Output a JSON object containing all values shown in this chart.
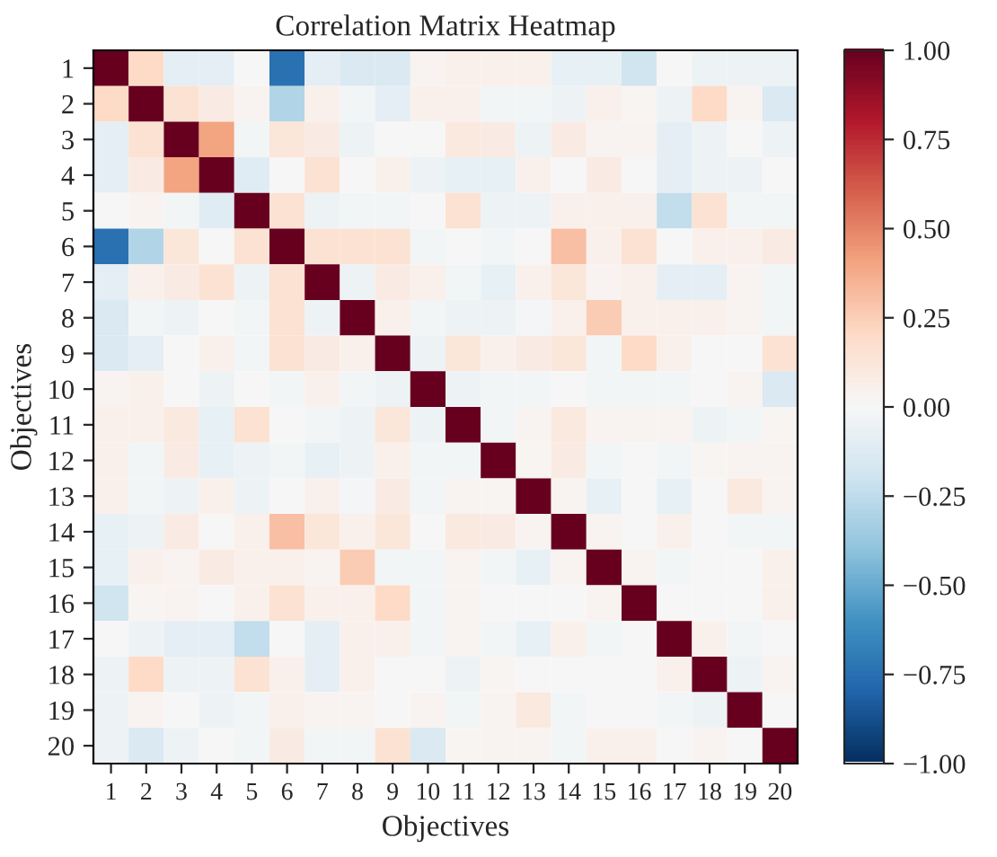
{
  "chart_data": {
    "type": "heatmap",
    "title": "Correlation Matrix Heatmap",
    "xlabel": "Objectives",
    "ylabel": "Objectives",
    "categories": [
      "1",
      "2",
      "3",
      "4",
      "5",
      "6",
      "7",
      "8",
      "9",
      "10",
      "11",
      "12",
      "13",
      "14",
      "15",
      "16",
      "17",
      "18",
      "19",
      "20"
    ],
    "y_categories": [
      "1",
      "2",
      "3",
      "4",
      "5",
      "6",
      "7",
      "8",
      "9",
      "10",
      "11",
      "12",
      "13",
      "14",
      "15",
      "16",
      "17",
      "18",
      "19",
      "20"
    ],
    "cells": [
      [
        1,
        0.2,
        -0.1,
        -0.1,
        0,
        -0.75,
        -0.1,
        -0.15,
        -0.15,
        0.03,
        0.05,
        0.05,
        0.05,
        -0.08,
        -0.08,
        -0.2,
        0,
        -0.05,
        -0.05,
        -0.05
      ],
      [
        0.2,
        1,
        0.15,
        0.08,
        0.03,
        -0.3,
        0.05,
        -0.03,
        -0.1,
        0.05,
        0.05,
        -0.03,
        -0.03,
        -0.05,
        0.05,
        0.02,
        -0.05,
        0.2,
        0.03,
        -0.15
      ],
      [
        -0.1,
        0.15,
        1,
        0.4,
        -0.03,
        0.12,
        0.08,
        -0.05,
        0,
        0,
        0.1,
        0.08,
        -0.05,
        0.08,
        0.03,
        0.03,
        -0.1,
        -0.05,
        0,
        -0.05
      ],
      [
        -0.1,
        0.08,
        0.4,
        1,
        -0.12,
        0,
        0.15,
        0,
        0.05,
        -0.05,
        -0.08,
        -0.08,
        0.05,
        0,
        0.08,
        0,
        -0.1,
        -0.05,
        -0.05,
        0
      ],
      [
        0,
        0.03,
        -0.03,
        -0.12,
        1,
        0.15,
        -0.05,
        -0.03,
        -0.03,
        0,
        0.15,
        -0.05,
        -0.05,
        0.05,
        0.05,
        0.05,
        -0.25,
        0.15,
        -0.03,
        -0.03
      ],
      [
        -0.75,
        -0.3,
        0.12,
        0,
        0.15,
        1,
        0.15,
        0.15,
        0.15,
        -0.03,
        0,
        -0.03,
        0,
        0.3,
        0.05,
        0.15,
        0,
        0.05,
        0.05,
        0.08
      ],
      [
        -0.1,
        0.05,
        0.08,
        0.15,
        -0.05,
        0.15,
        1,
        -0.05,
        0.08,
        0.05,
        -0.03,
        -0.08,
        0.05,
        0.12,
        0.03,
        0.05,
        -0.1,
        -0.1,
        0.03,
        -0.03
      ],
      [
        -0.15,
        -0.03,
        -0.05,
        0,
        -0.03,
        0.15,
        -0.05,
        1,
        0.05,
        -0.03,
        -0.05,
        -0.05,
        -0.02,
        0.05,
        0.25,
        0.05,
        0.05,
        0.05,
        0.03,
        -0.03
      ],
      [
        -0.15,
        -0.1,
        0,
        0.05,
        -0.03,
        0.15,
        0.08,
        0.05,
        1,
        -0.05,
        0.12,
        0.05,
        0.08,
        0.12,
        -0.03,
        0.2,
        0.05,
        0,
        0,
        0.15
      ],
      [
        0.03,
        0.05,
        0,
        -0.05,
        0,
        -0.03,
        0.05,
        -0.03,
        -0.05,
        1,
        -0.05,
        -0.03,
        -0.03,
        0,
        -0.03,
        -0.03,
        -0.03,
        0,
        0.03,
        -0.15
      ],
      [
        0.05,
        0.05,
        0.1,
        -0.08,
        0.15,
        0,
        -0.03,
        -0.05,
        0.12,
        -0.05,
        1,
        -0.03,
        0.03,
        0.1,
        0.03,
        0.03,
        0.03,
        -0.05,
        -0.03,
        0.02
      ],
      [
        0.05,
        -0.03,
        0.08,
        -0.08,
        -0.05,
        -0.03,
        -0.08,
        -0.05,
        0.05,
        -0.03,
        -0.03,
        1,
        0.02,
        0.08,
        -0.03,
        0,
        -0.03,
        0.02,
        0.03,
        0.03
      ],
      [
        0.05,
        -0.03,
        -0.05,
        0.05,
        -0.05,
        0,
        0.05,
        -0.02,
        0.08,
        -0.03,
        0.03,
        0.02,
        1,
        0.03,
        -0.08,
        0,
        -0.08,
        0,
        0.1,
        0.03
      ],
      [
        -0.08,
        -0.05,
        0.08,
        0,
        0.05,
        0.3,
        0.12,
        0.05,
        0.12,
        0,
        0.1,
        0.08,
        0.03,
        1,
        0.03,
        0,
        0.05,
        0,
        -0.03,
        -0.03
      ],
      [
        -0.08,
        0.05,
        0.03,
        0.08,
        0.05,
        0.05,
        0.03,
        0.25,
        -0.03,
        -0.03,
        0.03,
        -0.03,
        -0.08,
        0.03,
        1,
        0.03,
        -0.03,
        0,
        0,
        0.05
      ],
      [
        -0.2,
        0.02,
        0.03,
        0,
        0.05,
        0.15,
        0.05,
        0.05,
        0.2,
        -0.03,
        0.03,
        0,
        0,
        0,
        0.03,
        1,
        0,
        0,
        0,
        0.05
      ],
      [
        0,
        -0.05,
        -0.1,
        -0.1,
        -0.25,
        0,
        -0.1,
        0.05,
        0.05,
        -0.03,
        0.03,
        -0.03,
        -0.08,
        0.05,
        -0.03,
        0,
        1,
        0.05,
        -0.03,
        0
      ],
      [
        -0.05,
        0.2,
        -0.05,
        -0.05,
        0.15,
        0.05,
        -0.1,
        0.05,
        0,
        0,
        -0.05,
        0.02,
        0,
        0,
        0,
        0,
        0.05,
        1,
        -0.05,
        0.03
      ],
      [
        -0.05,
        0.03,
        0,
        -0.05,
        -0.03,
        0.05,
        0.03,
        0.03,
        0,
        0.03,
        -0.03,
        0.03,
        0.1,
        -0.03,
        0,
        0,
        -0.03,
        -0.05,
        1,
        0
      ],
      [
        -0.05,
        -0.15,
        -0.05,
        0,
        -0.03,
        0.08,
        -0.03,
        -0.03,
        0.15,
        -0.15,
        0.02,
        0.03,
        0.03,
        -0.03,
        0.05,
        0.05,
        0,
        0.03,
        0,
        1
      ]
    ],
    "clim": [
      -1,
      1
    ],
    "cticks": [
      {
        "value": -1,
        "label": "−1.00"
      },
      {
        "value": -0.75,
        "label": "−0.75"
      },
      {
        "value": -0.5,
        "label": "−0.50"
      },
      {
        "value": -0.25,
        "label": "−0.25"
      },
      {
        "value": 0,
        "label": "0.00"
      },
      {
        "value": 0.25,
        "label": "0.25"
      },
      {
        "value": 0.5,
        "label": "0.50"
      },
      {
        "value": 0.75,
        "label": "0.75"
      },
      {
        "value": 1,
        "label": "1.00"
      }
    ],
    "grid": false
  }
}
